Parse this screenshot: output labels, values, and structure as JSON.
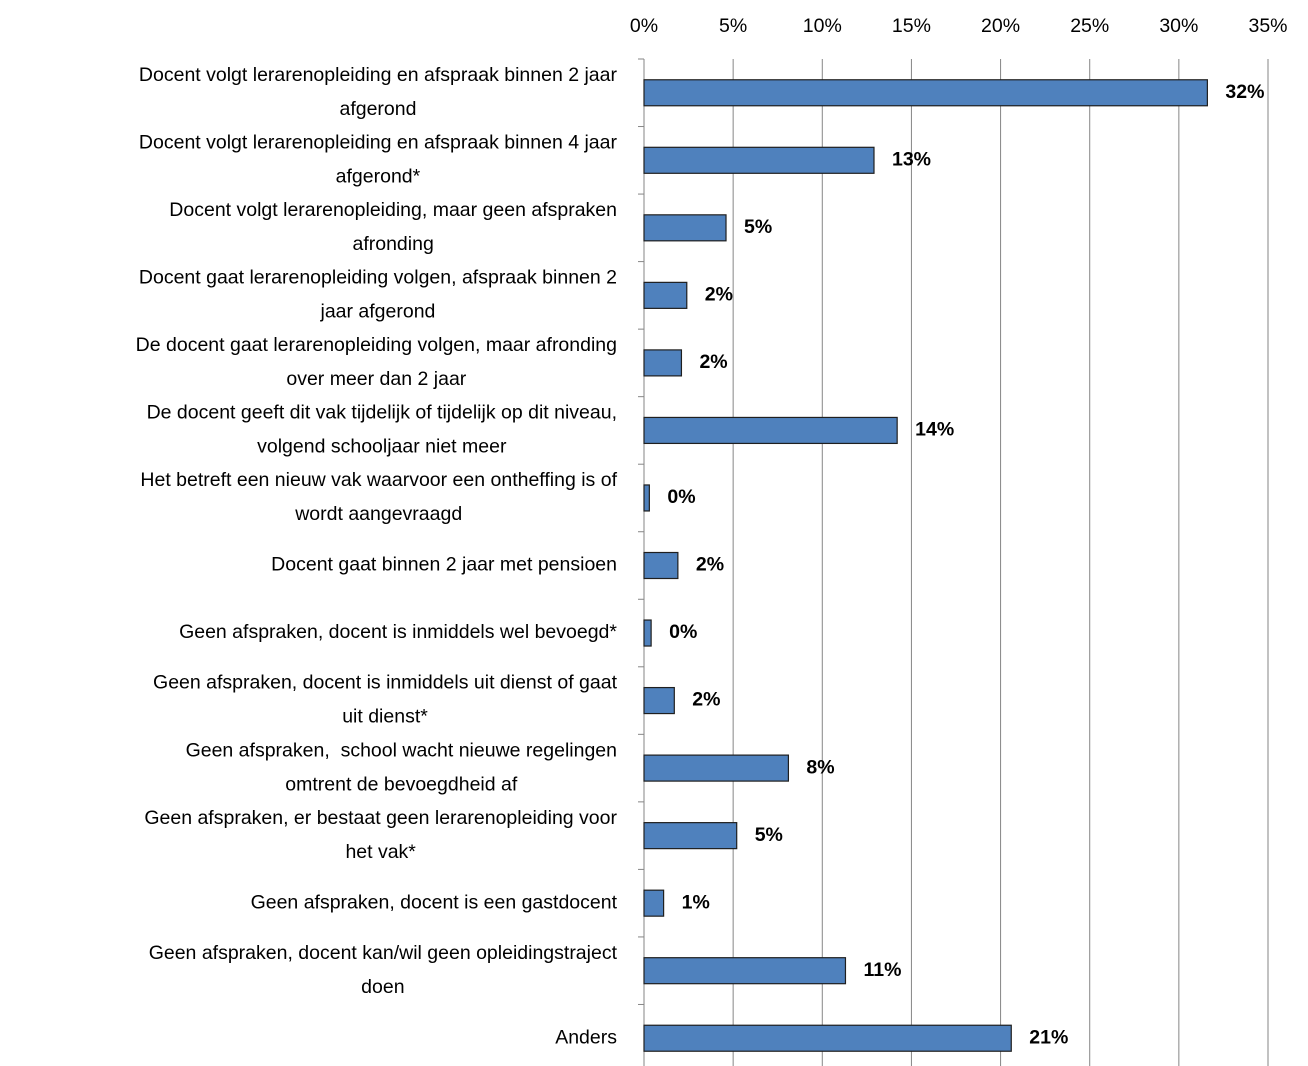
{
  "chart_data": {
    "type": "barh",
    "categories": [
      [
        "Docent volgt lerarenopleiding en afspraak binnen 2 jaar",
        "afgerond"
      ],
      [
        "Docent volgt lerarenopleiding en afspraak binnen 4 jaar",
        "afgerond*"
      ],
      [
        "Docent volgt lerarenopleiding, maar geen afspraken",
        "afronding"
      ],
      [
        "Docent gaat lerarenopleiding volgen, afspraak binnen 2",
        "jaar afgerond"
      ],
      [
        "De docent gaat lerarenopleiding volgen, maar afronding",
        "over meer dan 2 jaar"
      ],
      [
        "De docent geeft dit vak tijdelijk of tijdelijk op dit niveau,",
        "volgend schooljaar niet meer"
      ],
      [
        "Het betreft een nieuw vak waarvoor een ontheffing is of",
        "wordt aangevraagd"
      ],
      [
        "Docent gaat binnen 2 jaar met pensioen"
      ],
      [
        "Geen afspraken, docent is inmiddels wel bevoegd*"
      ],
      [
        "Geen afspraken, docent is inmiddels uit dienst of gaat",
        "uit dienst*"
      ],
      [
        "Geen afspraken,  school wacht nieuwe regelingen",
        "omtrent de bevoegdheid af"
      ],
      [
        "Geen afspraken, er bestaat geen lerarenopleiding voor",
        "het vak*"
      ],
      [
        "Geen afspraken, docent is een gastdocent"
      ],
      [
        "Geen afspraken, docent kan/wil geen opleidingstraject",
        "doen"
      ],
      [
        "Anders"
      ]
    ],
    "values": [
      31.6,
      12.9,
      4.6,
      2.4,
      2.1,
      14.2,
      0.3,
      1.9,
      0.4,
      1.7,
      8.1,
      5.2,
      1.1,
      11.3,
      20.6
    ],
    "value_labels": [
      "32%",
      "13%",
      "5%",
      "2%",
      "2%",
      "14%",
      "0%",
      "2%",
      "0%",
      "2%",
      "8%",
      "5%",
      "1%",
      "11%",
      "21%"
    ],
    "color": "#4f81bd",
    "xlim": [
      0,
      35
    ],
    "xticks": [
      {
        "value": 0,
        "label": "0%"
      },
      {
        "value": 5,
        "label": "5%"
      },
      {
        "value": 10,
        "label": "10%"
      },
      {
        "value": 15,
        "label": "15%"
      },
      {
        "value": 20,
        "label": "20%"
      },
      {
        "value": 25,
        "label": "25%"
      },
      {
        "value": 30,
        "label": "30%"
      },
      {
        "value": 35,
        "label": "35%"
      }
    ],
    "grid": true
  }
}
